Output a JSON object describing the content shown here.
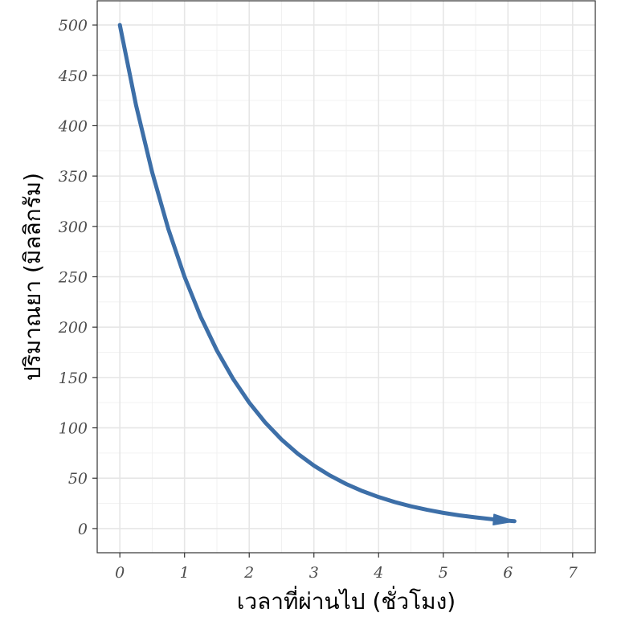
{
  "chart_data": {
    "type": "line",
    "title": "",
    "xlabel": "เวลาที่ผ่านไป (ชั่วโมง)",
    "ylabel": "ปริมาณยา (มิลลิกรัม)",
    "xlim": [
      -0.35,
      7.35
    ],
    "ylim": [
      -24,
      524
    ],
    "x_ticks": [
      0,
      1,
      2,
      3,
      4,
      5,
      6,
      7
    ],
    "y_ticks": [
      0,
      50,
      100,
      150,
      200,
      250,
      300,
      350,
      400,
      450,
      500
    ],
    "grid": true,
    "series": [
      {
        "color": "#3d6fa8",
        "arrow_end": true,
        "x": [
          0,
          0.25,
          0.5,
          0.75,
          1,
          1.25,
          1.5,
          1.75,
          2,
          2.25,
          2.5,
          2.75,
          3,
          3.25,
          3.5,
          3.75,
          4,
          4.25,
          4.5,
          4.75,
          5,
          5.25,
          5.5,
          5.75,
          6,
          6.1
        ],
        "y": [
          500,
          420.4,
          353.6,
          297.3,
          250,
          210.2,
          176.8,
          148.7,
          125,
          105.1,
          88.4,
          74.3,
          62.5,
          52.6,
          44.2,
          37.2,
          31.3,
          26.3,
          22.1,
          18.6,
          15.6,
          13.1,
          11.1,
          9.3,
          7.8,
          7.3
        ]
      }
    ]
  }
}
